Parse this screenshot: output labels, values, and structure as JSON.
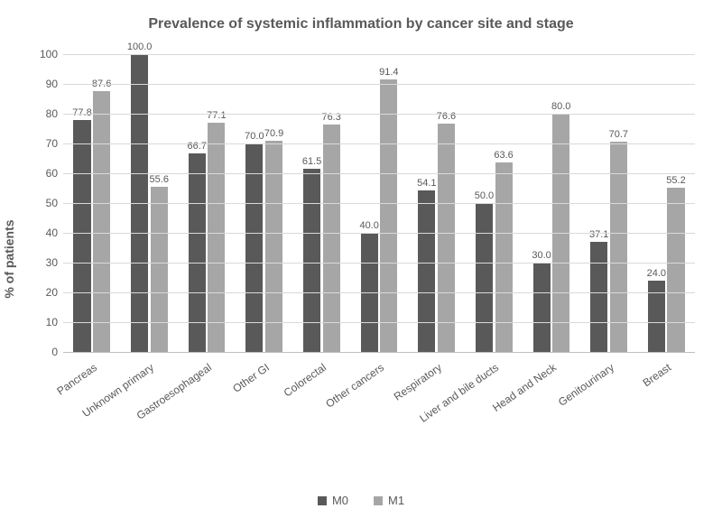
{
  "chart": {
    "type": "bar",
    "title": "Prevalence of systemic inflammation by cancer site and stage",
    "title_fontsize": 16,
    "title_color": "#595959",
    "ylabel": "% of patients",
    "ylabel_fontsize": 14,
    "ylabel_color": "#595959",
    "background_color": "#ffffff",
    "grid_color": "#d9d9d9",
    "axis_line_color": "#bfbfbf",
    "text_color": "#595959",
    "tick_fontsize": 12,
    "value_label_fontsize": 11,
    "xlabel_fontsize": 12,
    "xlabel_rotation_deg": -35,
    "ylim": [
      0,
      100
    ],
    "ytick_step": 10,
    "yticks": [
      0,
      10,
      20,
      30,
      40,
      50,
      60,
      70,
      80,
      90,
      100
    ],
    "bar_group_gap_ratio": 0.36,
    "bar_inner_gap_ratio": 0.04,
    "categories": [
      "Pancreas",
      "Unknown primary",
      "Gastroesophageal",
      "Other GI",
      "Colorectal",
      "Other cancers",
      "Respiratory",
      "Liver and bile ducts",
      "Head and Neck",
      "Genitourinary",
      "Breast"
    ],
    "series": [
      {
        "name": "M0",
        "color": "#595959",
        "values": [
          77.8,
          100.0,
          66.7,
          70.0,
          61.5,
          40.0,
          54.1,
          50.0,
          30.0,
          37.1,
          24.0
        ]
      },
      {
        "name": "M1",
        "color": "#a6a6a6",
        "values": [
          87.6,
          55.6,
          77.1,
          70.9,
          76.3,
          91.4,
          76.6,
          63.6,
          80.0,
          70.7,
          55.2
        ]
      }
    ],
    "legend": {
      "position": "bottom",
      "fontsize": 13
    }
  }
}
